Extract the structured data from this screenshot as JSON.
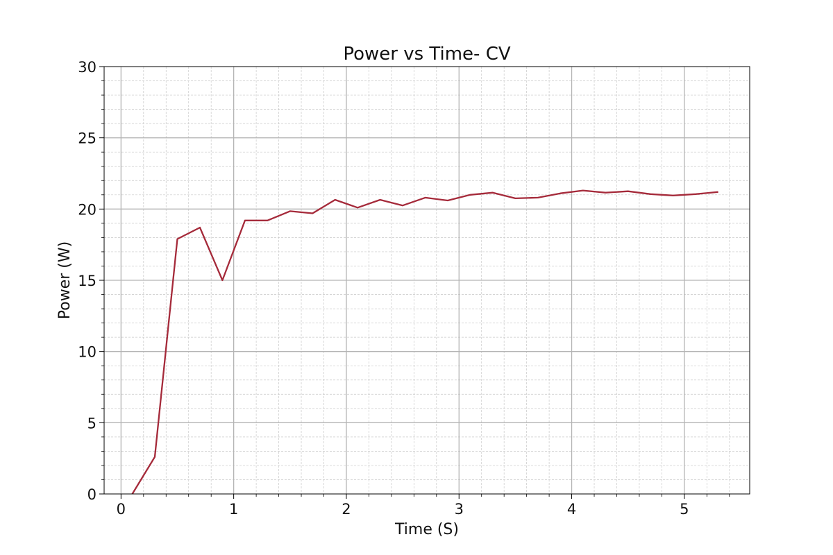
{
  "chart_data": {
    "type": "line",
    "title": "Power vs Time- CV",
    "xlabel": "Time (S)",
    "ylabel": "Power (W)",
    "xlim": [
      -0.15,
      5.58
    ],
    "ylim": [
      0,
      30
    ],
    "xticks": [
      0,
      1,
      2,
      3,
      4,
      5
    ],
    "yticks": [
      0,
      5,
      10,
      15,
      20,
      25,
      30
    ],
    "grid": true,
    "minor_grid": true,
    "legend": false,
    "series": [
      {
        "color": "#a52a3a",
        "x": [
          0.1,
          0.3,
          0.5,
          0.7,
          0.9,
          1.1,
          1.3,
          1.5,
          1.7,
          1.9,
          2.1,
          2.3,
          2.5,
          2.7,
          2.9,
          3.1,
          3.3,
          3.5,
          3.7,
          3.9,
          4.1,
          4.3,
          4.5,
          4.7,
          4.9,
          5.1,
          5.3
        ],
        "y": [
          0.0,
          2.6,
          17.9,
          18.7,
          15.0,
          19.2,
          19.2,
          19.85,
          19.7,
          20.65,
          20.1,
          20.65,
          20.25,
          20.8,
          20.6,
          21.0,
          21.15,
          20.75,
          20.8,
          21.1,
          21.3,
          21.15,
          21.25,
          21.05,
          20.95,
          21.05,
          21.2
        ]
      }
    ]
  }
}
